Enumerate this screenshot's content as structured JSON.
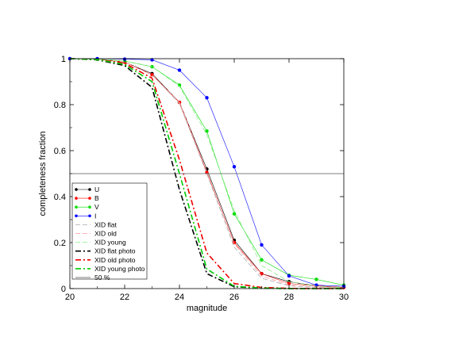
{
  "chart_data": {
    "type": "line",
    "title": "",
    "xlabel": "magnitude",
    "ylabel": "completeness fraction",
    "xlim": [
      20,
      30
    ],
    "ylim": [
      0,
      1
    ],
    "xticks": [
      20,
      22,
      24,
      26,
      28,
      30
    ],
    "yticks": [
      0,
      0.2,
      0.4,
      0.6,
      0.8,
      1
    ],
    "grid": false,
    "legend_position": "bottom-left",
    "series": [
      {
        "name": "U",
        "kind": "measured",
        "color": "#000000",
        "x": [
          20,
          21,
          22,
          23,
          24,
          25,
          26,
          27,
          28,
          29,
          30
        ],
        "y": [
          1.0,
          0.998,
          0.985,
          0.935,
          0.81,
          0.52,
          0.21,
          0.065,
          0.03,
          0.012,
          0.005
        ]
      },
      {
        "name": "B",
        "kind": "measured",
        "color": "#ff0000",
        "x": [
          20,
          21,
          22,
          23,
          24,
          25,
          26,
          27,
          28,
          29,
          30
        ],
        "y": [
          1.0,
          0.998,
          0.985,
          0.93,
          0.81,
          0.505,
          0.2,
          0.065,
          0.022,
          0.012,
          0.005
        ]
      },
      {
        "name": "V",
        "kind": "measured",
        "color": "#00dd00",
        "x": [
          20,
          21,
          22,
          23,
          24,
          25,
          26,
          27,
          28,
          29,
          30
        ],
        "y": [
          1.0,
          0.998,
          0.99,
          0.965,
          0.885,
          0.685,
          0.325,
          0.125,
          0.058,
          0.04,
          0.015
        ]
      },
      {
        "name": "I",
        "kind": "measured",
        "color": "#0000ff",
        "x": [
          20,
          21,
          22,
          23,
          24,
          25,
          26,
          27,
          28,
          29,
          30
        ],
        "y": [
          1.0,
          1.0,
          0.998,
          0.995,
          0.95,
          0.83,
          0.53,
          0.19,
          0.055,
          0.015,
          0.01
        ]
      },
      {
        "name": "XID flat",
        "kind": "model-thin",
        "color": "#aaaaaa",
        "x": [
          20,
          21,
          22,
          23,
          24,
          25,
          26,
          27,
          28,
          29,
          30
        ],
        "y": [
          1.0,
          0.998,
          0.985,
          0.93,
          0.805,
          0.5,
          0.18,
          0.045,
          0.012,
          0.005,
          0.002
        ]
      },
      {
        "name": "XID old",
        "kind": "model-thin",
        "color": "#ff9999",
        "x": [
          20,
          21,
          22,
          23,
          24,
          25,
          26,
          27,
          28,
          29,
          30
        ],
        "y": [
          1.0,
          0.998,
          0.985,
          0.93,
          0.81,
          0.51,
          0.195,
          0.055,
          0.015,
          0.006,
          0.002
        ]
      },
      {
        "name": "XID young",
        "kind": "model-thin",
        "color": "#88ee88",
        "x": [
          20,
          21,
          22,
          23,
          24,
          25,
          26,
          27,
          28,
          29,
          30
        ],
        "y": [
          1.0,
          0.998,
          0.99,
          0.965,
          0.88,
          0.67,
          0.34,
          0.1,
          0.03,
          0.01,
          0.004
        ]
      },
      {
        "name": "XID flat photo",
        "kind": "model-thick",
        "color": "#000000",
        "x": [
          20,
          21,
          22,
          23,
          24,
          25,
          26,
          27,
          28,
          29,
          30
        ],
        "y": [
          1.0,
          0.995,
          0.97,
          0.875,
          0.43,
          0.065,
          0.008,
          0.002,
          0.0,
          0.0,
          0.0
        ]
      },
      {
        "name": "XID old photo",
        "kind": "model-thick",
        "color": "#ee0000",
        "x": [
          20,
          21,
          22,
          23,
          24,
          25,
          26,
          27,
          28,
          29,
          30
        ],
        "y": [
          1.0,
          0.997,
          0.98,
          0.915,
          0.56,
          0.155,
          0.022,
          0.005,
          0.001,
          0.0,
          0.0
        ]
      },
      {
        "name": "XID young photo",
        "kind": "model-thick",
        "color": "#00cc00",
        "x": [
          20,
          21,
          22,
          23,
          24,
          25,
          26,
          27,
          28,
          29,
          30
        ],
        "y": [
          1.0,
          0.996,
          0.975,
          0.9,
          0.5,
          0.085,
          0.01,
          0.002,
          0.0,
          0.0,
          0.0
        ]
      },
      {
        "name": "50 %",
        "kind": "reference",
        "color": "#555555",
        "x": [
          20,
          30
        ],
        "y": [
          0.5,
          0.5
        ]
      }
    ]
  }
}
